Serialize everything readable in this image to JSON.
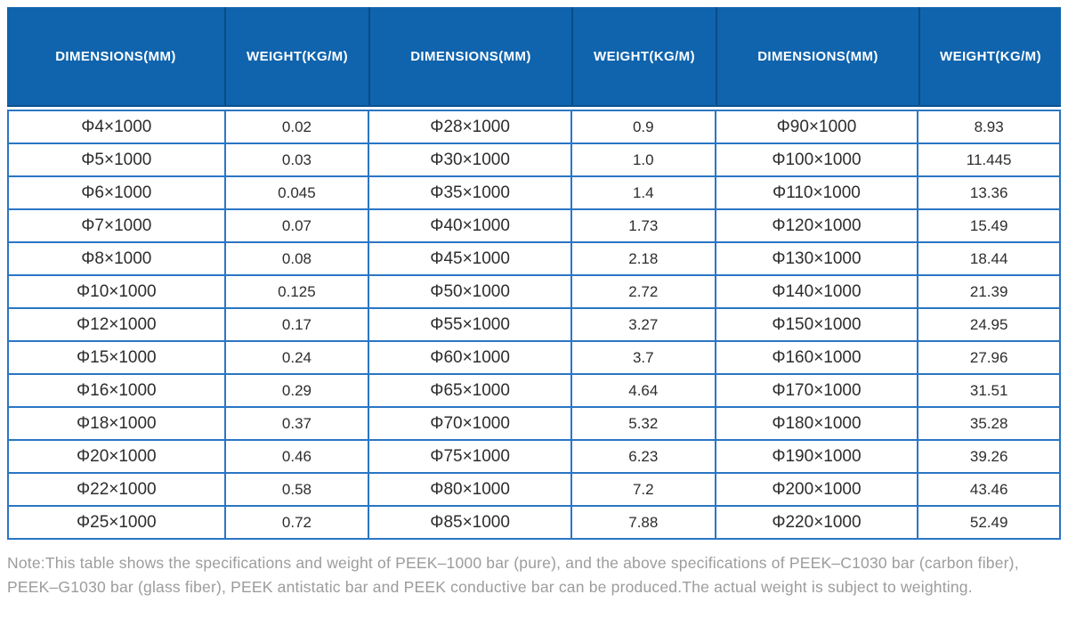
{
  "colors": {
    "header_bg": "#0f64ad",
    "header_divider": "#0a4c85",
    "table_border": "#2a76c4",
    "cell_text": "#2d2d2d",
    "note_text": "#9c9c9c"
  },
  "header": {
    "labels": [
      "DIMENSIONS(MM)",
      "WEIGHT(KG/M)",
      "DIMENSIONS(MM)",
      "WEIGHT(KG/M)",
      "DIMENSIONS(MM)",
      "WEIGHT(KG/M)"
    ]
  },
  "table": {
    "rows": [
      [
        "Φ4×1000",
        "0.02",
        "Φ28×1000",
        "0.9",
        "Φ90×1000",
        "8.93"
      ],
      [
        "Φ5×1000",
        "0.03",
        "Φ30×1000",
        "1.0",
        "Φ100×1000",
        "11.445"
      ],
      [
        "Φ6×1000",
        "0.045",
        "Φ35×1000",
        "1.4",
        "Φ110×1000",
        "13.36"
      ],
      [
        "Φ7×1000",
        "0.07",
        "Φ40×1000",
        "1.73",
        "Φ120×1000",
        "15.49"
      ],
      [
        "Φ8×1000",
        "0.08",
        "Φ45×1000",
        "2.18",
        "Φ130×1000",
        "18.44"
      ],
      [
        "Φ10×1000",
        "0.125",
        "Φ50×1000",
        "2.72",
        "Φ140×1000",
        "21.39"
      ],
      [
        "Φ12×1000",
        "0.17",
        "Φ55×1000",
        "3.27",
        "Φ150×1000",
        "24.95"
      ],
      [
        "Φ15×1000",
        "0.24",
        "Φ60×1000",
        "3.7",
        "Φ160×1000",
        "27.96"
      ],
      [
        "Φ16×1000",
        "0.29",
        "Φ65×1000",
        "4.64",
        "Φ170×1000",
        "31.51"
      ],
      [
        "Φ18×1000",
        "0.37",
        "Φ70×1000",
        "5.32",
        "Φ180×1000",
        "35.28"
      ],
      [
        "Φ20×1000",
        "0.46",
        "Φ75×1000",
        "6.23",
        "Φ190×1000",
        "39.26"
      ],
      [
        "Φ22×1000",
        "0.58",
        "Φ80×1000",
        "7.2",
        "Φ200×1000",
        "43.46"
      ],
      [
        "Φ25×1000",
        "0.72",
        "Φ85×1000",
        "7.88",
        "Φ220×1000",
        "52.49"
      ]
    ]
  },
  "note": {
    "text": "Note:This table shows the specifications and weight of PEEK–1000 bar (pure), and the above specifications of PEEK–C1030 bar (carbon fiber), PEEK–G1030 bar (glass fiber), PEEK antistatic bar and PEEK conductive bar can be produced.The actual weight is subject to weighting."
  }
}
